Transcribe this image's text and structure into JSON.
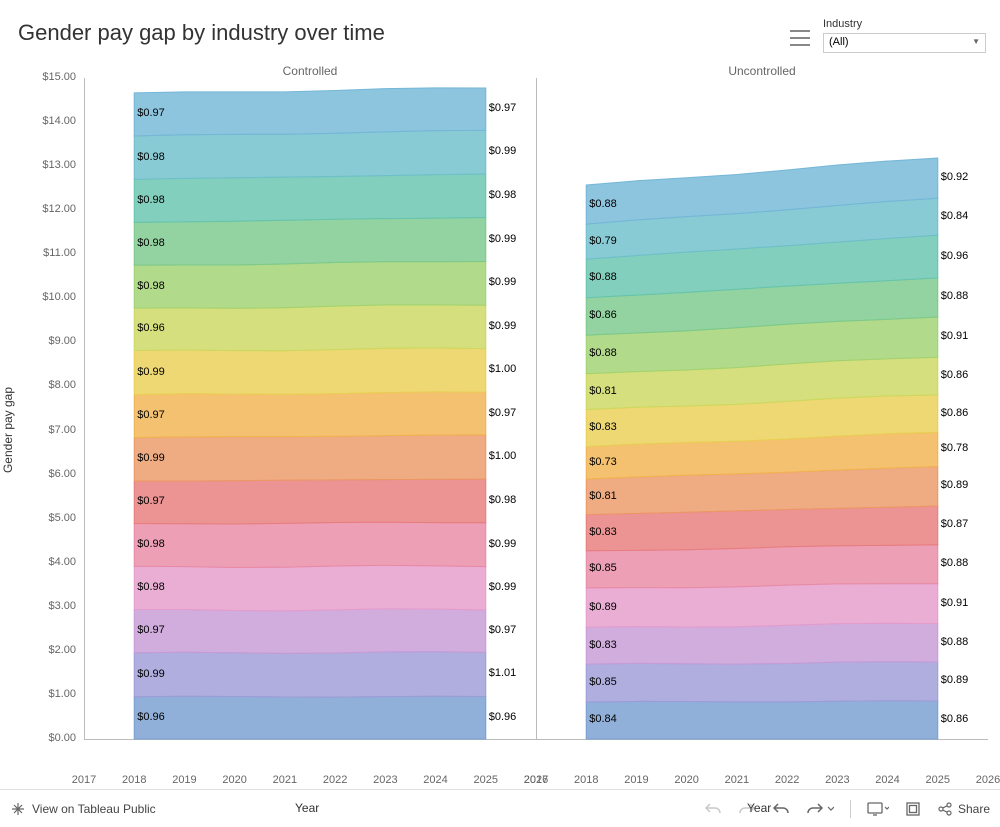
{
  "title": "Gender pay gap by industry over time",
  "filter": {
    "label": "Industry",
    "selected": "(All)"
  },
  "chart": {
    "type": "stacked-area",
    "panels": [
      "Controlled",
      "Uncontrolled"
    ],
    "y_axis": {
      "label": "Gender pay gap",
      "min": 0,
      "max": 15,
      "step_minor": 1,
      "ticks": [
        0,
        1,
        2,
        3,
        4,
        5,
        6,
        7,
        8,
        9,
        10,
        11,
        12,
        13,
        14,
        15
      ],
      "tick_format": "$#0.00"
    },
    "x_axis": {
      "label": "Year",
      "min": 2017,
      "max": 2026,
      "ticks": [
        2017,
        2018,
        2019,
        2020,
        2021,
        2022,
        2023,
        2024,
        2025,
        2026
      ],
      "data_start": 2018,
      "data_end": 2025
    },
    "colors": [
      "#799fd1",
      "#9e9cd7",
      "#c79bd6",
      "#e59ccb",
      "#e88aa5",
      "#e87d7d",
      "#ec9865",
      "#f1b351",
      "#e9cf54",
      "#ccd860",
      "#a1d271",
      "#7bc98c",
      "#66c4af",
      "#6fbfcb",
      "#74b7d7"
    ],
    "label_color": "#000000",
    "axis_color": "#bbbbbb",
    "background": "#ffffff",
    "label_fontsize": 11,
    "controlled": {
      "start_labels": [
        "$0.96",
        "$0.99",
        "$0.97",
        "$0.98",
        "$0.98",
        "$0.97",
        "$0.99",
        "$0.97",
        "$0.99",
        "$0.96",
        "$0.98",
        "$0.98",
        "$0.98",
        "$0.98",
        "$0.97"
      ],
      "end_labels": [
        "$0.96",
        "$1.01",
        "$0.97",
        "$0.99",
        "$0.99",
        "$0.98",
        "$1.00",
        "$0.97",
        "$1.00",
        "$0.99",
        "$0.99",
        "$0.99",
        "$0.98",
        "$0.99",
        "$0.97"
      ],
      "start_values": [
        0.96,
        0.99,
        0.97,
        0.98,
        0.98,
        0.97,
        0.99,
        0.97,
        0.99,
        0.96,
        0.98,
        0.98,
        0.98,
        0.98,
        0.97
      ],
      "end_values": [
        0.96,
        1.01,
        0.97,
        0.99,
        0.99,
        0.98,
        1.0,
        0.97,
        1.0,
        0.99,
        0.99,
        0.99,
        0.98,
        0.99,
        0.97
      ]
    },
    "uncontrolled": {
      "start_labels": [
        "$0.84",
        "$0.85",
        "$0.83",
        "$0.89",
        "$0.85",
        "$0.83",
        "$0.81",
        "$0.73",
        "$0.83",
        "$0.81",
        "$0.88",
        "$0.86",
        "$0.88",
        "$0.79",
        "$0.88"
      ],
      "end_labels": [
        "$0.86",
        "$0.89",
        "$0.88",
        "$0.91",
        "$0.88",
        "$0.87",
        "$0.89",
        "$0.78",
        "$0.86",
        "$0.86",
        "$0.91",
        "$0.88",
        "$0.96",
        "$0.84",
        "$0.92"
      ],
      "start_values": [
        0.84,
        0.85,
        0.83,
        0.89,
        0.85,
        0.83,
        0.81,
        0.73,
        0.83,
        0.81,
        0.88,
        0.86,
        0.88,
        0.79,
        0.88
      ],
      "end_values": [
        0.86,
        0.89,
        0.88,
        0.91,
        0.88,
        0.87,
        0.89,
        0.78,
        0.86,
        0.86,
        0.91,
        0.88,
        0.96,
        0.84,
        0.92
      ]
    }
  },
  "footer": {
    "view_on": "View on Tableau Public",
    "share": "Share"
  }
}
